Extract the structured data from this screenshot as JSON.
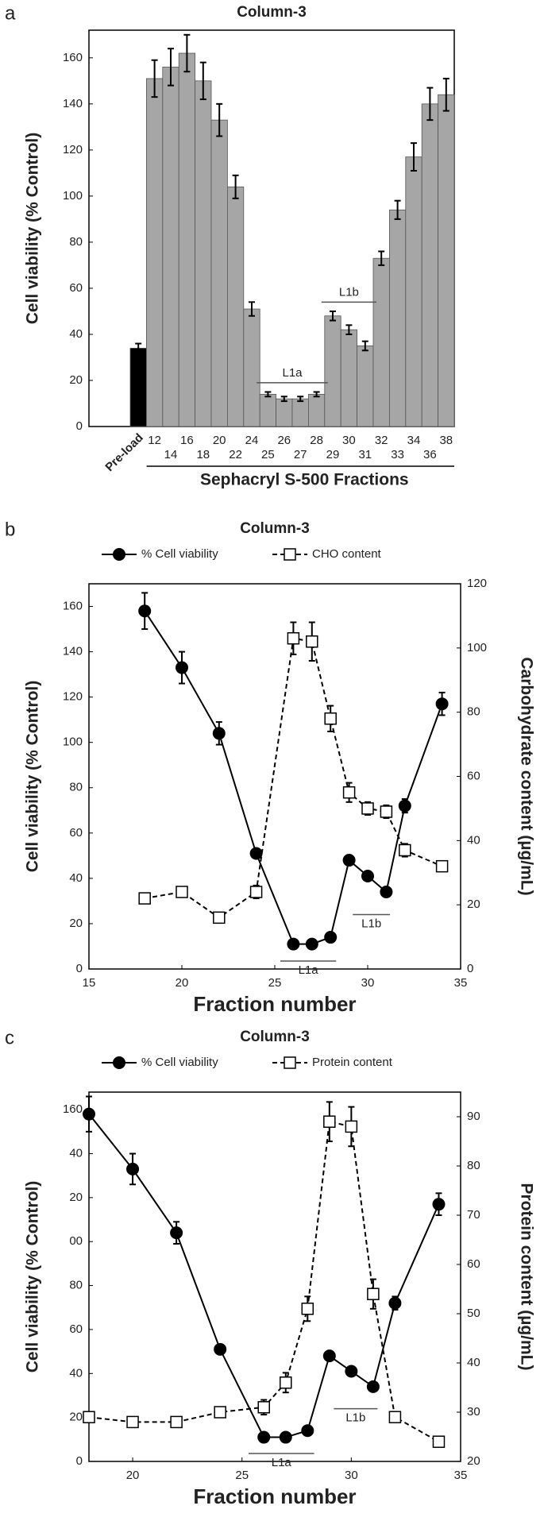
{
  "chart_data": [
    {
      "type": "bar",
      "panel_label": "a",
      "title": "Column-3",
      "y_label": "Cell viability (% Control)",
      "x_label": "Sephacryl S-500 Fractions",
      "categories": [
        "Pre-load",
        "12",
        "14",
        "16",
        "18",
        "20",
        "22",
        "24",
        "25",
        "26",
        "27",
        "28",
        "29",
        "30",
        "31",
        "32",
        "33",
        "34",
        "36",
        "38"
      ],
      "values": [
        34,
        151,
        156,
        162,
        150,
        133,
        104,
        51,
        14,
        12,
        12,
        14,
        48,
        42,
        35,
        73,
        94,
        117,
        140,
        144
      ],
      "errors": [
        2,
        8,
        8,
        8,
        8,
        7,
        5,
        3,
        1,
        1,
        1,
        1,
        2,
        2,
        2,
        3,
        4,
        6,
        7,
        7
      ],
      "colors": [
        "#000000",
        "#a6a6a6",
        "#a6a6a6",
        "#a6a6a6",
        "#a6a6a6",
        "#a6a6a6",
        "#a6a6a6",
        "#a6a6a6",
        "#a6a6a6",
        "#a6a6a6",
        "#a6a6a6",
        "#a6a6a6",
        "#a6a6a6",
        "#a6a6a6",
        "#a6a6a6",
        "#a6a6a6",
        "#a6a6a6",
        "#a6a6a6",
        "#a6a6a6",
        "#a6a6a6"
      ],
      "ylim": [
        0,
        172
      ],
      "yticks": [
        0,
        20,
        40,
        60,
        80,
        100,
        120,
        140,
        160
      ],
      "annotations": [
        "L1a",
        "L1b"
      ]
    },
    {
      "type": "line",
      "panel_label": "b",
      "title": "Column-3",
      "y_label": "Cell viability (% Control)",
      "y2_label": "Carbohydrate content (µg/mL)",
      "x_label": "Fraction number",
      "x": [
        18,
        20,
        22,
        24,
        26,
        27,
        28,
        29,
        30,
        31,
        32,
        34
      ],
      "series": [
        {
          "name": "% Cell viability",
          "color": "#000000",
          "marker": "filled-circle",
          "line_style": "solid",
          "values": [
            158,
            133,
            104,
            51,
            11,
            11,
            14,
            48,
            41,
            34,
            72,
            117
          ],
          "errors": [
            8,
            7,
            5,
            2,
            1,
            1,
            1,
            2,
            2,
            2,
            3,
            5
          ]
        },
        {
          "name": "CHO content",
          "color": "#000000",
          "marker": "open-square",
          "line_style": "dashed",
          "axis": "y2",
          "values": [
            22,
            24,
            16,
            24,
            103,
            102,
            78,
            55,
            50,
            49,
            37,
            32
          ],
          "errors": [
            1.5,
            1.5,
            1.5,
            2,
            5,
            6,
            4,
            3,
            2,
            2,
            2,
            1.5
          ]
        }
      ],
      "xlim": [
        15,
        35
      ],
      "xticks": [
        15,
        20,
        25,
        30,
        35
      ],
      "ylim": [
        0,
        170
      ],
      "yticks": [
        0,
        20,
        40,
        60,
        80,
        100,
        120,
        140,
        160
      ],
      "y2lim": [
        0,
        120
      ],
      "y2ticks": [
        0,
        20,
        40,
        60,
        80,
        100,
        120
      ],
      "annotations": [
        "L1a",
        "L1b"
      ]
    },
    {
      "type": "line",
      "panel_label": "c",
      "title": "Column-3",
      "y_label": "Cell viability (% Control)",
      "y2_label": "Protein content (µg/mL)",
      "x_label": "Fraction number",
      "x": [
        18,
        20,
        22,
        24,
        26,
        27,
        28,
        29,
        30,
        31,
        32,
        34
      ],
      "series": [
        {
          "name": "% Cell viability",
          "color": "#000000",
          "marker": "filled-circle",
          "line_style": "solid",
          "values": [
            158,
            133,
            104,
            51,
            11,
            11,
            14,
            48,
            41,
            34,
            72,
            117
          ],
          "errors": [
            8,
            7,
            5,
            2,
            1,
            1,
            1,
            2,
            2,
            2,
            3,
            5
          ]
        },
        {
          "name": "Protein content",
          "color": "#000000",
          "marker": "open-square",
          "line_style": "dashed",
          "axis": "y2",
          "values": [
            29,
            28,
            28,
            30,
            31,
            36,
            51,
            89,
            88,
            54,
            29,
            24
          ],
          "errors": [
            1,
            1,
            1,
            1,
            1.5,
            2,
            2.5,
            4,
            4,
            3,
            1,
            1
          ]
        }
      ],
      "xlim": [
        18,
        35
      ],
      "xticks": [
        20,
        25,
        30,
        35
      ],
      "ylim": [
        0,
        168
      ],
      "yticks": [
        0,
        20,
        40,
        60,
        80,
        {
          "value": 100,
          "label": "00"
        },
        {
          "value": 120,
          "label": "20"
        },
        {
          "value": 140,
          "label": "40"
        },
        160
      ],
      "y2lim": [
        20,
        95
      ],
      "y2ticks": [
        20,
        30,
        40,
        50,
        60,
        70,
        80,
        90
      ],
      "annotations": [
        "L1a",
        "L1b"
      ]
    }
  ]
}
